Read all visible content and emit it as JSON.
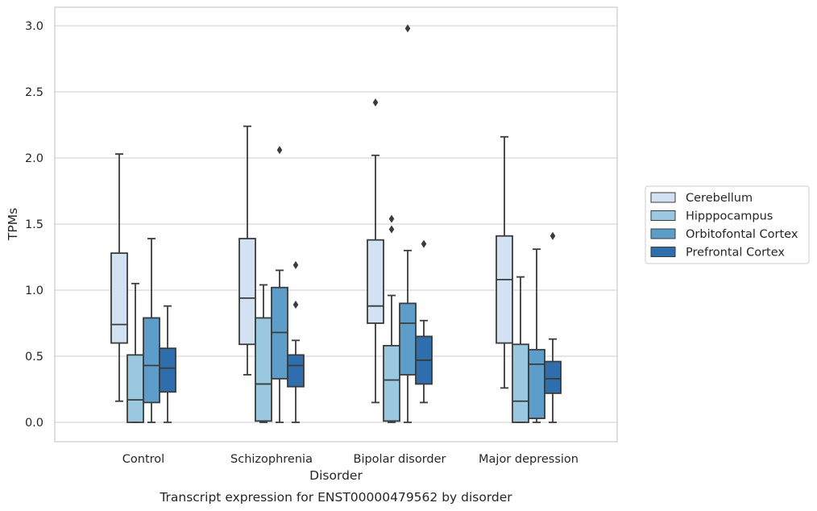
{
  "chart_data": {
    "type": "box",
    "title": "",
    "caption": "Transcript expression for ENST00000479562 by disorder",
    "xlabel": "Disorder",
    "ylabel": "TPMs",
    "ylim": [
      -0.14,
      3.14
    ],
    "yticks": [
      "0.0",
      "0.5",
      "1.0",
      "1.5",
      "2.0",
      "2.5",
      "3.0"
    ],
    "grid": "horizontal",
    "legend_position": "right",
    "categories": [
      "Control",
      "Schizophrenia",
      "Bipolar disorder",
      "Major depression"
    ],
    "series": [
      {
        "name": "Cerebellum",
        "color": "#d2e2f2",
        "boxes": [
          {
            "whislo": 0.16,
            "q1": 0.6,
            "med": 0.74,
            "q3": 1.28,
            "whishi": 2.03,
            "fliers": []
          },
          {
            "whislo": 0.36,
            "q1": 0.59,
            "med": 0.94,
            "q3": 1.39,
            "whishi": 2.24,
            "fliers": []
          },
          {
            "whislo": 0.15,
            "q1": 0.75,
            "med": 0.88,
            "q3": 1.38,
            "whishi": 2.02,
            "fliers": [
              2.42
            ]
          },
          {
            "whislo": 0.26,
            "q1": 0.6,
            "med": 1.08,
            "q3": 1.41,
            "whishi": 2.16,
            "fliers": []
          }
        ]
      },
      {
        "name": "Hipppocampus",
        "color": "#9ac8e0",
        "boxes": [
          {
            "whislo": 0.0,
            "q1": 0.0,
            "med": 0.17,
            "q3": 0.51,
            "whishi": 1.05,
            "fliers": []
          },
          {
            "whislo": 0.0,
            "q1": 0.01,
            "med": 0.29,
            "q3": 0.79,
            "whishi": 1.04,
            "fliers": []
          },
          {
            "whislo": 0.0,
            "q1": 0.01,
            "med": 0.32,
            "q3": 0.58,
            "whishi": 0.96,
            "fliers": [
              1.46,
              1.54
            ]
          },
          {
            "whislo": 0.0,
            "q1": 0.0,
            "med": 0.16,
            "q3": 0.59,
            "whishi": 1.1,
            "fliers": []
          }
        ]
      },
      {
        "name": "Orbitofontal Cortex",
        "color": "#5c9ec9",
        "boxes": [
          {
            "whislo": 0.0,
            "q1": 0.15,
            "med": 0.43,
            "q3": 0.79,
            "whishi": 1.39,
            "fliers": []
          },
          {
            "whislo": 0.0,
            "q1": 0.33,
            "med": 0.68,
            "q3": 1.02,
            "whishi": 1.15,
            "fliers": [
              2.06
            ]
          },
          {
            "whislo": 0.0,
            "q1": 0.36,
            "med": 0.75,
            "q3": 0.9,
            "whishi": 1.3,
            "fliers": [
              2.98
            ]
          },
          {
            "whislo": 0.0,
            "q1": 0.03,
            "med": 0.44,
            "q3": 0.55,
            "whishi": 1.31,
            "fliers": []
          }
        ]
      },
      {
        "name": "Prefrontal Cortex",
        "color": "#2e6eac",
        "boxes": [
          {
            "whislo": 0.0,
            "q1": 0.23,
            "med": 0.41,
            "q3": 0.56,
            "whishi": 0.88,
            "fliers": []
          },
          {
            "whislo": 0.0,
            "q1": 0.27,
            "med": 0.43,
            "q3": 0.51,
            "whishi": 0.62,
            "fliers": [
              0.89,
              1.19
            ]
          },
          {
            "whislo": 0.15,
            "q1": 0.29,
            "med": 0.47,
            "q3": 0.65,
            "whishi": 0.77,
            "fliers": [
              1.35
            ]
          },
          {
            "whislo": 0.0,
            "q1": 0.22,
            "med": 0.33,
            "q3": 0.46,
            "whishi": 0.63,
            "fliers": [
              1.41
            ]
          }
        ]
      }
    ]
  }
}
